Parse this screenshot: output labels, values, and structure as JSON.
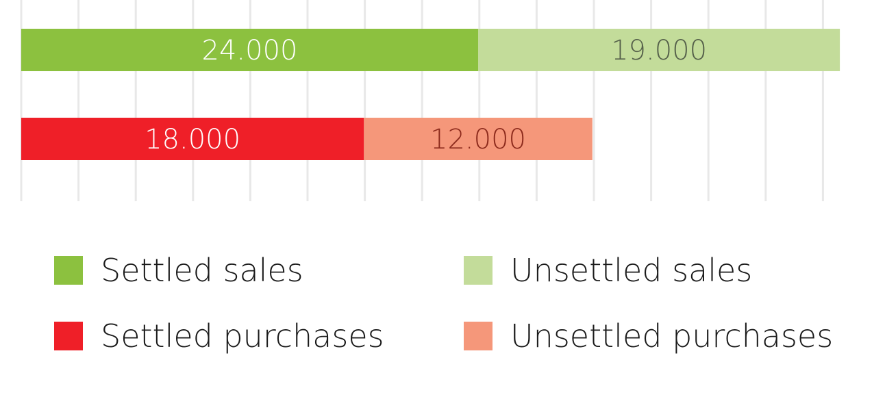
{
  "chart_data": {
    "type": "bar",
    "orientation": "horizontal",
    "stacked": true,
    "grid": true,
    "xlim": [
      0,
      43500
    ],
    "bars": [
      {
        "segments": [
          {
            "series": "Settled sales",
            "value": 24000,
            "label": "24.000",
            "color": "#8cc13f",
            "label_color": "#ffffff"
          },
          {
            "series": "Unsettled sales",
            "value": 19000,
            "label": "19.000",
            "color": "#c3dc9a",
            "label_color": "#55604a"
          }
        ]
      },
      {
        "segments": [
          {
            "series": "Settled purchases",
            "value": 18000,
            "label": "18.000",
            "color": "#ef1f28",
            "label_color": "#ffffff"
          },
          {
            "series": "Unsettled purchases",
            "value": 12000,
            "label": "12.000",
            "color": "#f5977a",
            "label_color": "#8c2a1c"
          }
        ]
      }
    ],
    "legend": {
      "placement": "bottom",
      "items": [
        {
          "label": "Settled sales",
          "color": "#8cc13f"
        },
        {
          "label": "Unsettled sales",
          "color": "#c3dc9a"
        },
        {
          "label": "Settled purchases",
          "color": "#ef1f28"
        },
        {
          "label": "Unsettled purchases",
          "color": "#f5977a"
        }
      ]
    }
  }
}
